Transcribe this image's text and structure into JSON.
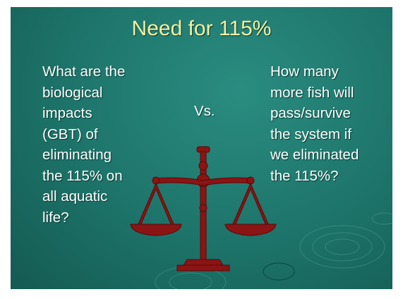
{
  "slide": {
    "title": "Need for 115%",
    "left_lines": [
      "What are the",
      "biological",
      "impacts",
      "(GBT) of",
      "eliminating",
      "the 115% on",
      "all aquatic",
      "life?"
    ],
    "versus": "Vs.",
    "right_lines": [
      "How many",
      "more fish will",
      "pass/survive",
      "the system if",
      "we eliminated",
      "the 115%?"
    ]
  }
}
